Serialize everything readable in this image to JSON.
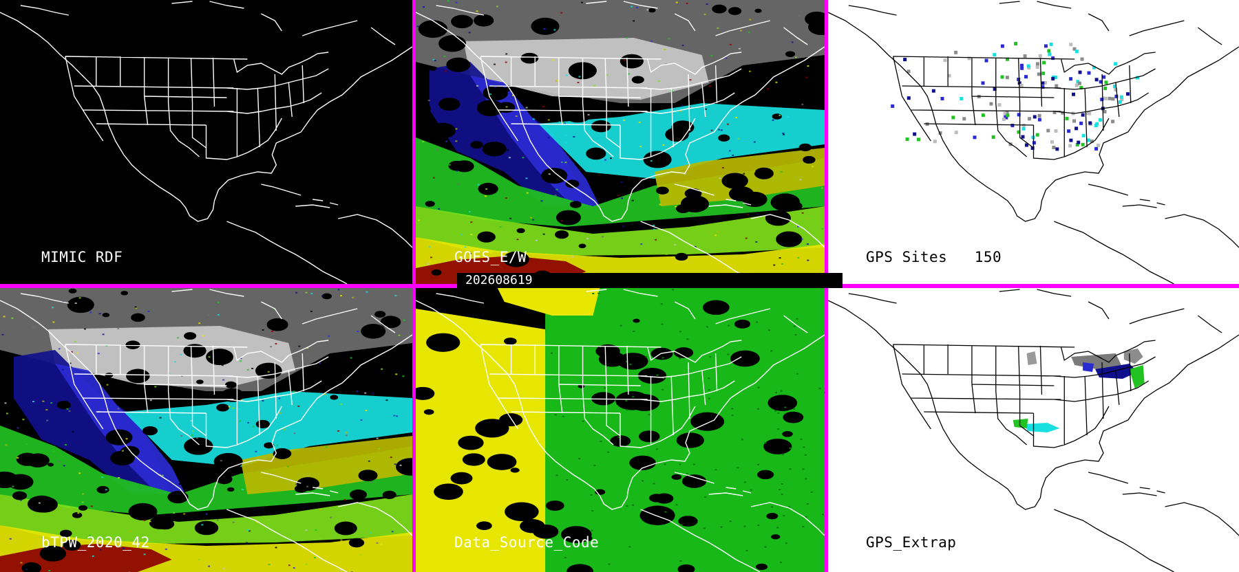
{
  "timestamp": "202608619",
  "panels": [
    {
      "id": "mimic-rdf",
      "label": "MIMIC RDF",
      "background": "#000000"
    },
    {
      "id": "goes-ew",
      "label": "GOES_E/W",
      "background": "#000000"
    },
    {
      "id": "gps-sites",
      "label": "GPS Sites",
      "count": "150",
      "background": "#ffffff"
    },
    {
      "id": "btpw",
      "label": "bTPW_2020_42",
      "background": "#000000"
    },
    {
      "id": "data-source-code",
      "label": "Data_Source_Code",
      "background": "#000000"
    },
    {
      "id": "gps-extrap",
      "label": "GPS_Extrap",
      "background": "#ffffff"
    }
  ],
  "colors": {
    "divider": "#ff00ff",
    "tpw_palette": [
      "#000000",
      "#6e6e6e",
      "#c8c8c8",
      "#10108c",
      "#2a2ad2",
      "#18e0e0",
      "#22c222",
      "#7fe01a",
      "#b8b800",
      "#e6e600",
      "#8c0000"
    ],
    "source_yellow": "#e6e600",
    "source_green": "#18b818"
  }
}
